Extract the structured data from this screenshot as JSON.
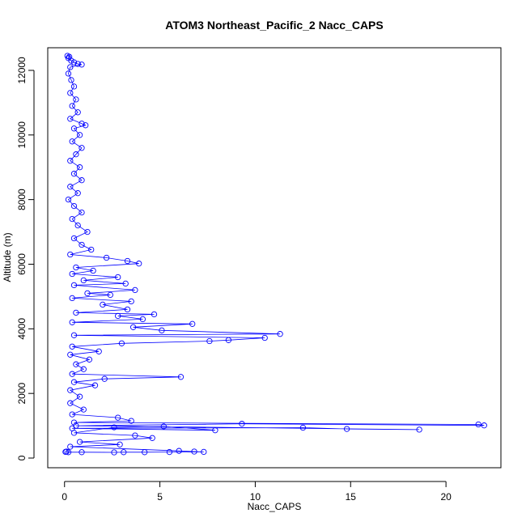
{
  "chart_data": {
    "type": "scatter",
    "title": "ATOM3 Northeast_Pacific_2 Nacc_CAPS",
    "xlabel": "Nacc_CAPS",
    "ylabel": "Altitude (m)",
    "xlim": [
      -0.88,
      22.88
    ],
    "ylim": [
      -300,
      12700
    ],
    "xticks": [
      0,
      5,
      10,
      15,
      20
    ],
    "yticks": [
      0,
      2000,
      4000,
      6000,
      8000,
      10000,
      12000
    ],
    "xtick_labels": [
      "0",
      "5",
      "10",
      "15",
      "20"
    ],
    "ytick_labels": [
      "0",
      "2000",
      "4000",
      "6000",
      "8000",
      "10000",
      "12000"
    ],
    "grid": false,
    "series": [
      {
        "color": "#0000ff",
        "marker": "open-circle",
        "connected": true,
        "points": [
          [
            0.15,
            12450
          ],
          [
            0.25,
            12420
          ],
          [
            0.2,
            12380
          ],
          [
            0.35,
            12300
          ],
          [
            0.5,
            12250
          ],
          [
            0.7,
            12200
          ],
          [
            0.9,
            12180
          ],
          [
            0.3,
            12100
          ],
          [
            0.2,
            11900
          ],
          [
            0.35,
            11700
          ],
          [
            0.5,
            11500
          ],
          [
            0.3,
            11300
          ],
          [
            0.6,
            11100
          ],
          [
            0.4,
            10900
          ],
          [
            0.7,
            10700
          ],
          [
            0.3,
            10500
          ],
          [
            0.9,
            10350
          ],
          [
            1.1,
            10300
          ],
          [
            0.5,
            10200
          ],
          [
            0.8,
            10000
          ],
          [
            0.4,
            9800
          ],
          [
            0.9,
            9600
          ],
          [
            0.6,
            9400
          ],
          [
            0.3,
            9200
          ],
          [
            0.8,
            9000
          ],
          [
            0.5,
            8800
          ],
          [
            0.9,
            8600
          ],
          [
            0.3,
            8400
          ],
          [
            0.7,
            8200
          ],
          [
            0.2,
            8000
          ],
          [
            0.5,
            7800
          ],
          [
            0.9,
            7600
          ],
          [
            0.4,
            7400
          ],
          [
            0.7,
            7200
          ],
          [
            1.2,
            7000
          ],
          [
            0.5,
            6800
          ],
          [
            0.9,
            6600
          ],
          [
            1.4,
            6450
          ],
          [
            0.3,
            6300
          ],
          [
            2.2,
            6200
          ],
          [
            3.3,
            6100
          ],
          [
            3.9,
            6020
          ],
          [
            0.6,
            5900
          ],
          [
            1.5,
            5800
          ],
          [
            0.4,
            5700
          ],
          [
            2.8,
            5600
          ],
          [
            1.0,
            5500
          ],
          [
            3.2,
            5400
          ],
          [
            0.5,
            5350
          ],
          [
            3.7,
            5200
          ],
          [
            1.2,
            5100
          ],
          [
            2.4,
            5050
          ],
          [
            0.4,
            4950
          ],
          [
            3.5,
            4850
          ],
          [
            2.0,
            4750
          ],
          [
            3.3,
            4600
          ],
          [
            0.6,
            4500
          ],
          [
            4.7,
            4450
          ],
          [
            2.8,
            4400
          ],
          [
            4.1,
            4300
          ],
          [
            0.4,
            4200
          ],
          [
            6.7,
            4150
          ],
          [
            3.6,
            4050
          ],
          [
            5.1,
            3950
          ],
          [
            11.3,
            3840
          ],
          [
            0.5,
            3800
          ],
          [
            10.5,
            3720
          ],
          [
            8.6,
            3650
          ],
          [
            7.6,
            3620
          ],
          [
            3.0,
            3550
          ],
          [
            0.4,
            3450
          ],
          [
            1.8,
            3300
          ],
          [
            0.3,
            3200
          ],
          [
            1.3,
            3050
          ],
          [
            0.6,
            2900
          ],
          [
            1.0,
            2750
          ],
          [
            0.4,
            2600
          ],
          [
            6.1,
            2510
          ],
          [
            2.1,
            2450
          ],
          [
            0.5,
            2350
          ],
          [
            1.6,
            2250
          ],
          [
            0.3,
            2100
          ],
          [
            0.8,
            1900
          ],
          [
            0.3,
            1700
          ],
          [
            1.0,
            1500
          ],
          [
            0.4,
            1350
          ],
          [
            2.8,
            1250
          ],
          [
            3.5,
            1150
          ],
          [
            0.5,
            1100
          ],
          [
            21.7,
            1040
          ],
          [
            22.0,
            1010
          ],
          [
            9.3,
            1060
          ],
          [
            0.6,
            1000
          ],
          [
            18.6,
            880
          ],
          [
            14.8,
            900
          ],
          [
            12.5,
            940
          ],
          [
            0.4,
            920
          ],
          [
            7.9,
            860
          ],
          [
            5.2,
            980
          ],
          [
            2.6,
            950
          ],
          [
            0.5,
            780
          ],
          [
            3.7,
            700
          ],
          [
            4.6,
            620
          ],
          [
            0.8,
            500
          ],
          [
            2.9,
            420
          ],
          [
            0.3,
            350
          ],
          [
            6.0,
            220
          ],
          [
            6.8,
            200
          ],
          [
            7.3,
            190
          ],
          [
            5.5,
            185
          ],
          [
            4.2,
            180
          ],
          [
            3.1,
            180
          ],
          [
            2.6,
            175
          ],
          [
            0.9,
            180
          ],
          [
            0.2,
            180
          ],
          [
            0.1,
            200
          ],
          [
            0.05,
            190
          ]
        ]
      }
    ]
  }
}
